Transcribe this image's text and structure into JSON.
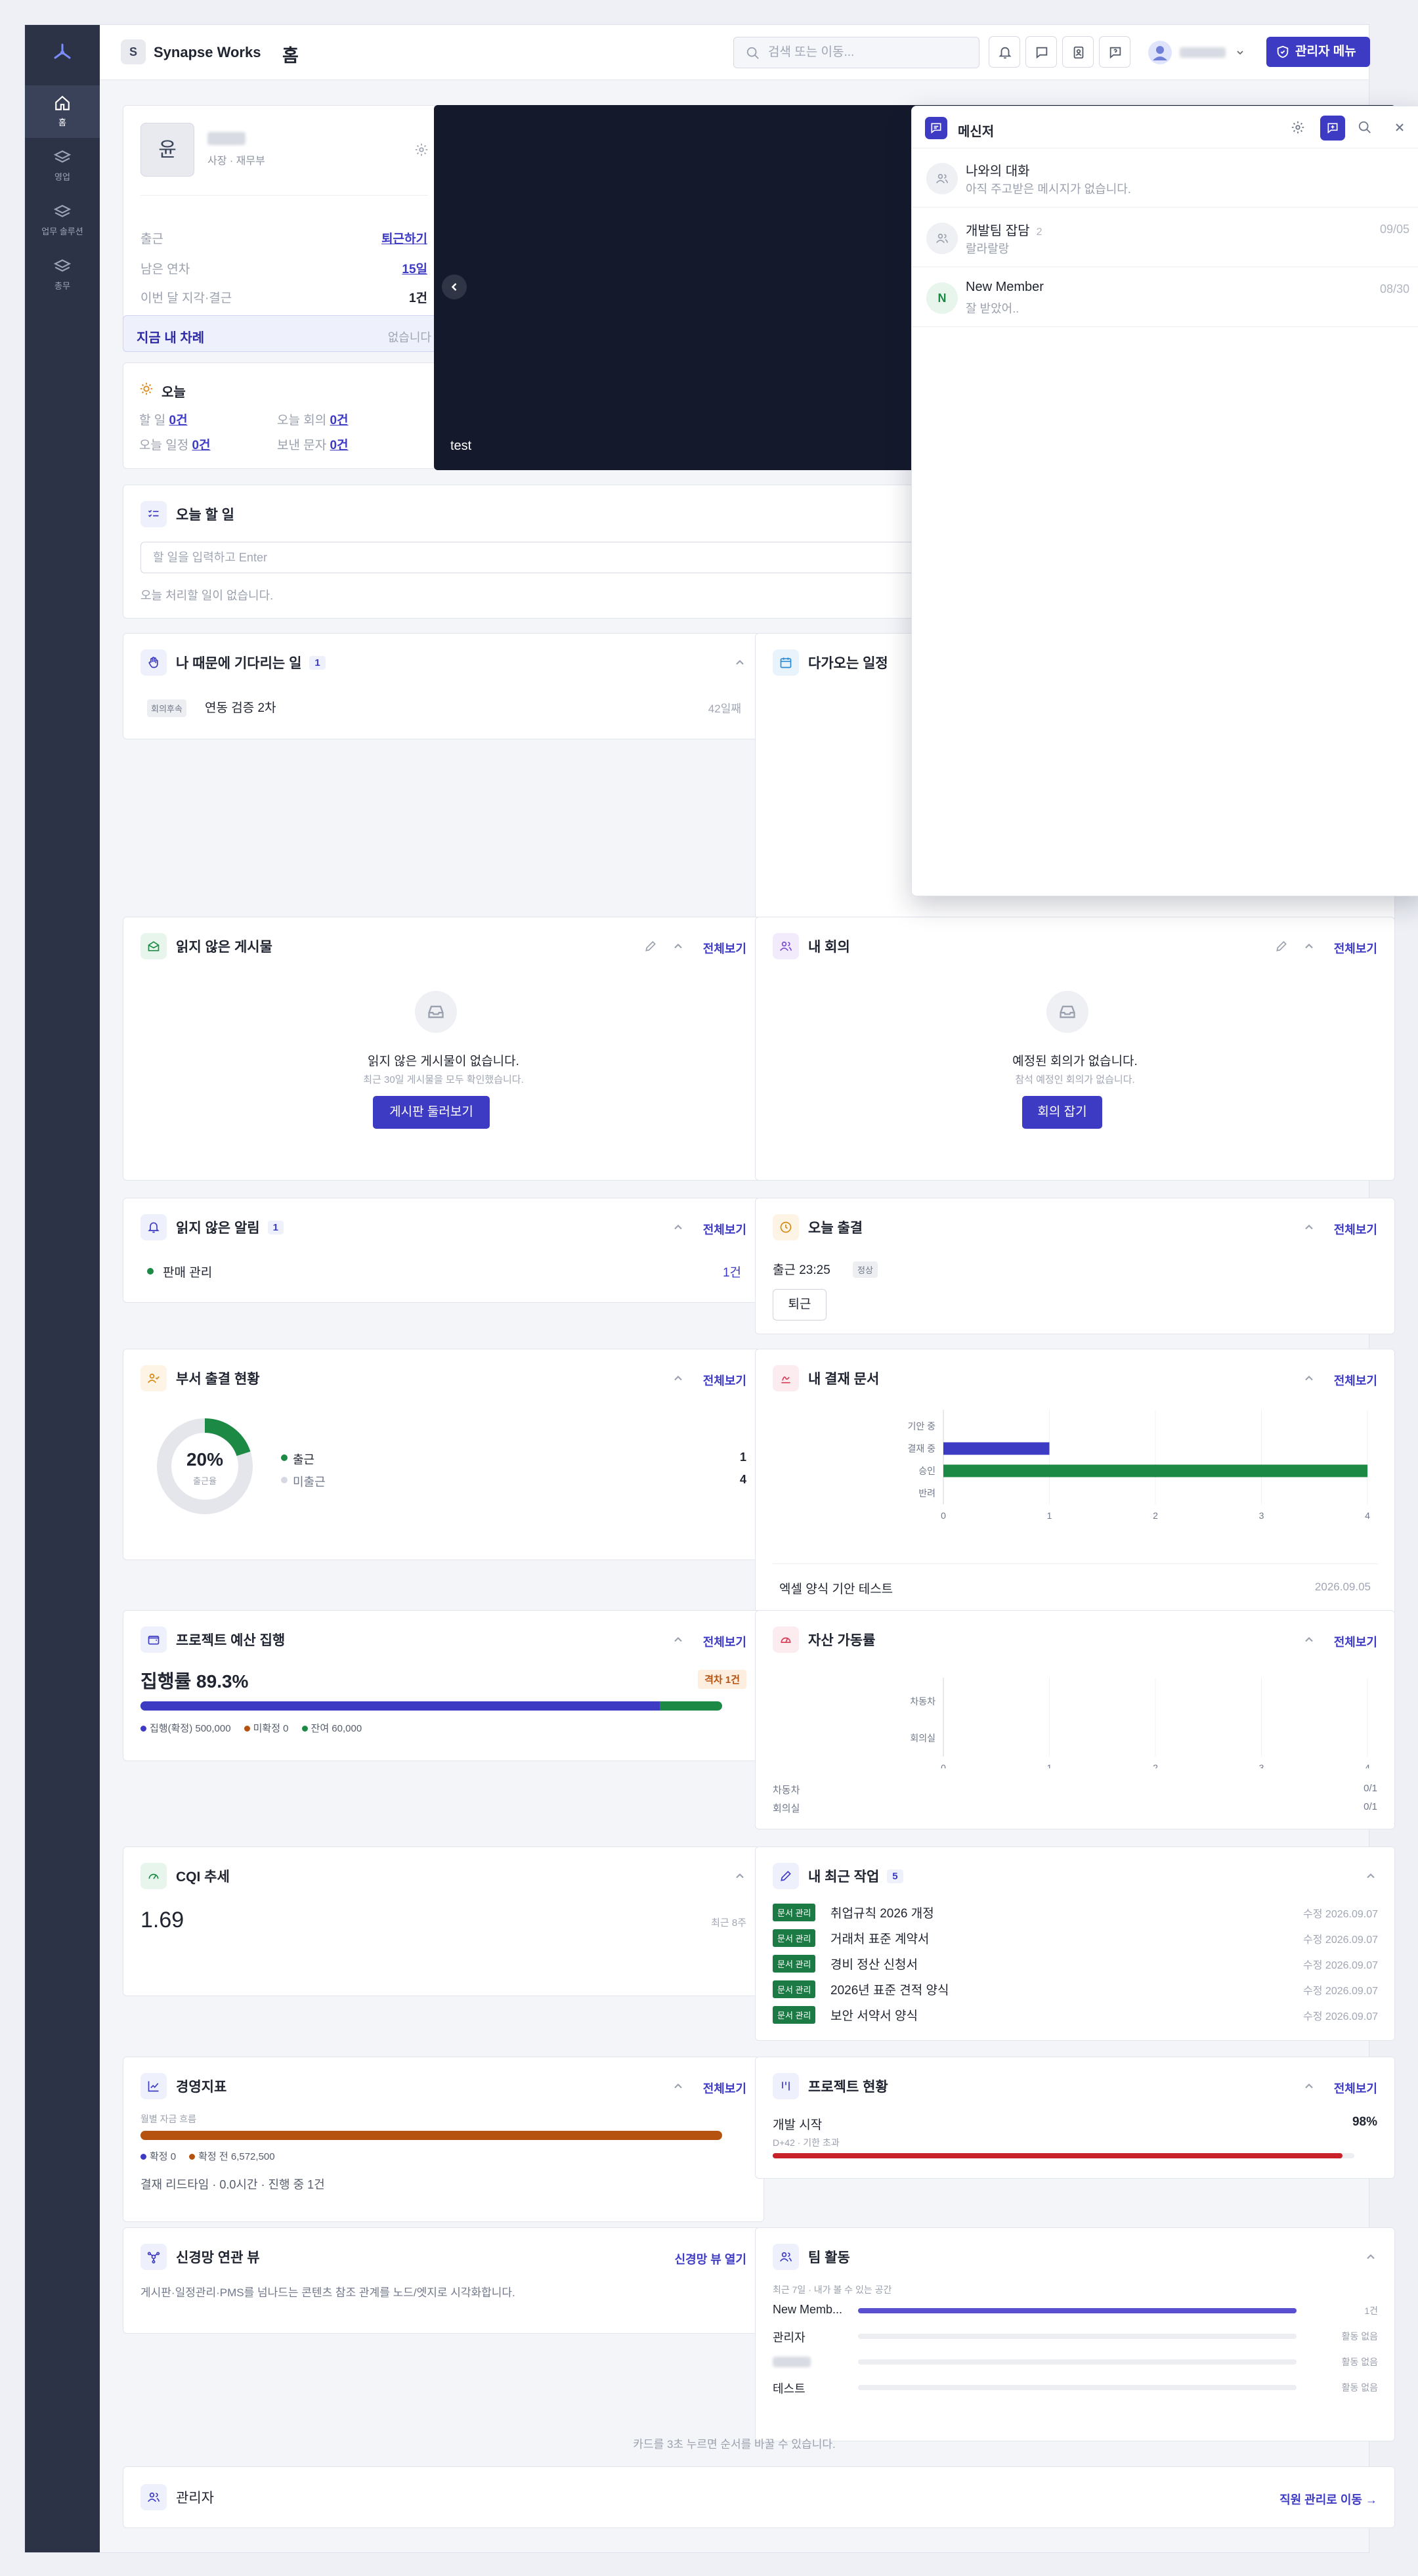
{
  "app": {
    "workspace_initial": "S",
    "workspace_name": "Synapse Works",
    "page_title": "홈"
  },
  "sidebar": {
    "items": [
      {
        "label": "홈"
      },
      {
        "label": "영업"
      },
      {
        "label": "업무 솔루션"
      },
      {
        "label": "총무"
      }
    ]
  },
  "header": {
    "search_placeholder": "검색 또는 이동...",
    "user_name": "",
    "admin_label": "관리자 메뉴"
  },
  "profile": {
    "avatar": "윤",
    "name": "",
    "role": "사장 · 재무부",
    "rows": [
      {
        "label": "출근",
        "value": "퇴근하기"
      },
      {
        "label": "남은 연차",
        "value": "15일"
      },
      {
        "label": "이번 달 지각·결근",
        "value": "1건"
      }
    ]
  },
  "my_turn": {
    "label": "지금 내 차례",
    "value": "없습니다"
  },
  "today": {
    "title": "오늘",
    "items": [
      {
        "label": "할 일",
        "value": "0건"
      },
      {
        "label": "오늘 회의",
        "value": "0건"
      },
      {
        "label": "오늘 일정",
        "value": "0건"
      },
      {
        "label": "보낸 문자",
        "value": "0건"
      }
    ]
  },
  "banner": {
    "caption": "test"
  },
  "todo": {
    "title": "오늘 할 일",
    "placeholder": "할 일을 입력하고 Enter",
    "empty": "오늘 처리할 일이 없습니다."
  },
  "waiting": {
    "title": "나 때문에 기다리는 일",
    "count": "1",
    "tag": "회의후속",
    "item": "연동 검증 2차",
    "age": "42일째"
  },
  "upcoming": {
    "title": "다가오는 일정"
  },
  "unread_posts": {
    "title": "읽지 않은 게시물",
    "link": "전체보기",
    "empty_title": "읽지 않은 게시물이 없습니다.",
    "empty_sub": "최근 30일 게시물을 모두 확인했습니다.",
    "button": "게시판 둘러보기"
  },
  "my_meetings": {
    "title": "내 회의",
    "link": "전체보기",
    "empty_title": "예정된 회의가 없습니다.",
    "empty_sub": "참석 예정인 회의가 없습니다.",
    "button": "회의 잡기"
  },
  "unread_alerts": {
    "title": "읽지 않은 알림",
    "count": "1",
    "link": "전체보기",
    "item": "판매 관리",
    "value": "1건"
  },
  "attendance": {
    "title": "오늘 출결",
    "link": "전체보기",
    "text": "출근 23:25",
    "badge": "정상",
    "button": "퇴근"
  },
  "dept": {
    "title": "부서 출결 현황",
    "link": "전체보기",
    "pct": "20%",
    "pct_label": "출근율",
    "legend": [
      {
        "label": "출근",
        "value": "1"
      },
      {
        "label": "미출근",
        "value": "4"
      }
    ],
    "ratio": 0.2
  },
  "approvals": {
    "title": "내 결재 문서",
    "link": "전체보기",
    "doc": "엑셀 양식 기안 테스트",
    "date": "2026.09.05"
  },
  "chart_data": [
    {
      "type": "bar",
      "orientation": "horizontal",
      "categories": [
        "기안 중",
        "결재 중",
        "승인",
        "반려"
      ],
      "values": [
        0,
        1,
        4,
        0
      ],
      "xlim": [
        0,
        4
      ],
      "xticks": [
        "0",
        "1",
        "2",
        "3",
        "4"
      ],
      "colors": [
        "#3d3ac4",
        "#3d3ac4",
        "#1c8a45",
        "#3d3ac4"
      ]
    },
    {
      "type": "bar",
      "orientation": "horizontal",
      "categories": [
        "차동차",
        "회의실"
      ],
      "values": [
        0,
        0
      ],
      "xlim": [
        0,
        4
      ],
      "xticks": [
        "0",
        "1",
        "2",
        "3",
        "4"
      ]
    }
  ],
  "budget": {
    "title": "프로젝트 예산 집행",
    "link": "전체보기",
    "rate": "집행률 89.3%",
    "badge": "격차 1건",
    "legend": [
      {
        "label": "집행(확정) 500,000",
        "color": "#3d3ac4"
      },
      {
        "label": "미확정 0",
        "color": "#b5520f"
      },
      {
        "label": "잔여 60,000",
        "color": "#1c8a45"
      }
    ],
    "spent_ratio": 0.893
  },
  "assets": {
    "title": "자산 가동률",
    "link": "전체보기",
    "rows": [
      {
        "label": "차동차",
        "value": "0/1"
      },
      {
        "label": "회의실",
        "value": "0/1"
      }
    ]
  },
  "cqi": {
    "title": "CQI 추세",
    "value": "1.69",
    "note": "최근 8주"
  },
  "recent": {
    "title": "내 최근 작업",
    "count": "5",
    "tag": "문서 관리",
    "items": [
      {
        "title": "취업규칙 2026 개정",
        "date": "수정 2026.09.07"
      },
      {
        "title": "거래처 표준 계약서",
        "date": "수정 2026.09.07"
      },
      {
        "title": "경비 정산 신청서",
        "date": "수정 2026.09.07"
      },
      {
        "title": "2026년 표준 견적 양식",
        "date": "수정 2026.09.07"
      },
      {
        "title": "보안 서약서 양식",
        "date": "수정 2026.09.07"
      }
    ]
  },
  "kpi": {
    "title": "경영지표",
    "link": "전체보기",
    "sub": "월별 자금 흐름",
    "legend": [
      {
        "label": "확정 0",
        "color": "#3d3ac4"
      },
      {
        "label": "확정 전 6,572,500",
        "color": "#b5520f"
      }
    ],
    "foot": "결재 리드타임 · 0.0시간 · 진행 중 1건"
  },
  "projects": {
    "title": "프로젝트 현황",
    "link": "전체보기",
    "name": "개발 시작",
    "pct": "98%",
    "sub": "D+42 · 기한 초과",
    "ratio": 0.98
  },
  "graph": {
    "title": "신경망 연관 뷰",
    "link": "신경망 뷰 열기",
    "desc": "게시판·일정관리·PMS를 넘나드는 콘텐츠 참조 관계를 노드/엣지로 시각화합니다."
  },
  "team": {
    "title": "팀 활동",
    "sub": "최근 7일 · 내가 볼 수 있는 공간",
    "rows": [
      {
        "name": "New Memb...",
        "value": "1건",
        "ratio": 1
      },
      {
        "name": "관리자",
        "value": "활동 없음",
        "ratio": 0
      },
      {
        "name": "",
        "value": "활동 없음",
        "ratio": 0
      },
      {
        "name": "테스트",
        "value": "활동 없음",
        "ratio": 0
      }
    ]
  },
  "hint": "카드를 3초 누르면 순서를 바꿀 수 있습니다.",
  "admin_card": {
    "title": "관리자",
    "link": "직원 관리로 이동 →"
  },
  "messenger": {
    "title": "메신저",
    "items": [
      {
        "initial": "",
        "name": "나와의 대화",
        "count": "",
        "preview": "아직 주고받은 메시지가 없습니다.",
        "date": ""
      },
      {
        "initial": "",
        "name": "개발팀 잡담",
        "count": "2",
        "preview": "랄라랄랑",
        "date": "09/05"
      },
      {
        "initial": "N",
        "name": "New Member",
        "count": "",
        "preview": "잘 받았어..",
        "date": "08/30"
      }
    ]
  }
}
